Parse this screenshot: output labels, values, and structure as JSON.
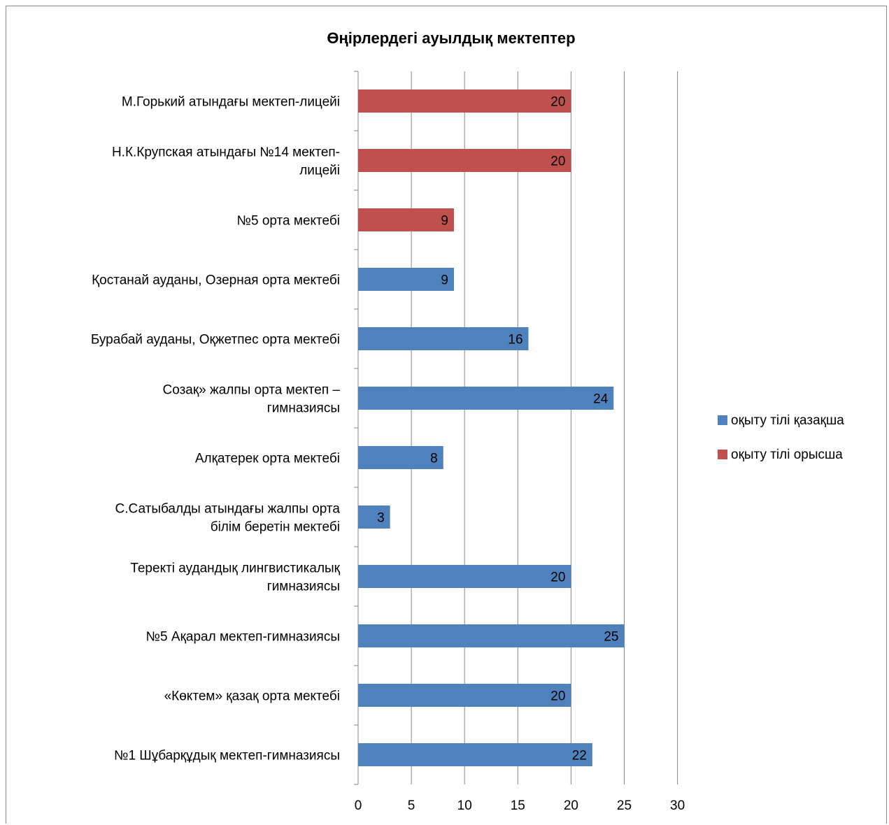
{
  "chart_data": {
    "type": "bar",
    "orientation": "horizontal",
    "title": "Өңірлердегі ауылдық мектептер",
    "xlabel": "",
    "ylabel": "",
    "xlim": [
      0,
      30
    ],
    "x_ticks": [
      0,
      5,
      10,
      15,
      20,
      25,
      30
    ],
    "grid": true,
    "legend_position": "right",
    "categories": [
      {
        "label_lines": [
          "№1 Шұбарқұдық мектеп-гимназиясы"
        ],
        "value": 22,
        "series": "оқыту тілі қазақша"
      },
      {
        "label_lines": [
          "«Көктем» қазақ орта мектебі"
        ],
        "value": 20,
        "series": "оқыту тілі қазақша"
      },
      {
        "label_lines": [
          "№5 Ақарал мектеп-гимназиясы"
        ],
        "value": 25,
        "series": "оқыту тілі қазақша"
      },
      {
        "label_lines": [
          "Теректі аудандық лингвистикалық",
          "гимназиясы"
        ],
        "value": 20,
        "series": "оқыту тілі қазақша"
      },
      {
        "label_lines": [
          "С.Сатыбалды атындағы жалпы орта",
          "білім беретін мектебі"
        ],
        "value": 3,
        "series": "оқыту тілі қазақша"
      },
      {
        "label_lines": [
          "Алқатерек орта мектебі"
        ],
        "value": 8,
        "series": "оқыту тілі қазақша"
      },
      {
        "label_lines": [
          "Созақ» жалпы орта мектеп –",
          "гимназиясы"
        ],
        "value": 24,
        "series": "оқыту тілі қазақша"
      },
      {
        "label_lines": [
          "Бурабай ауданы, Оқжетпес орта мектебі"
        ],
        "value": 16,
        "series": "оқыту тілі қазақша"
      },
      {
        "label_lines": [
          "Қостанай ауданы, Озерная орта мектебі"
        ],
        "value": 9,
        "series": "оқыту тілі қазақша"
      },
      {
        "label_lines": [
          "№5 орта мектебі"
        ],
        "value": 9,
        "series": "оқыту тілі орысша"
      },
      {
        "label_lines": [
          "Н.К.Крупская атындағы №14 мектеп-",
          "лицейі"
        ],
        "value": 20,
        "series": "оқыту тілі орысша"
      },
      {
        "label_lines": [
          "М.Горький атындағы мектеп-лицейі"
        ],
        "value": 20,
        "series": "оқыту тілі орысша"
      }
    ],
    "series": [
      {
        "name": "оқыту тілі қазақша",
        "color": "#4f81bd"
      },
      {
        "name": "оқыту тілі орысша",
        "color": "#c0504d"
      }
    ]
  }
}
